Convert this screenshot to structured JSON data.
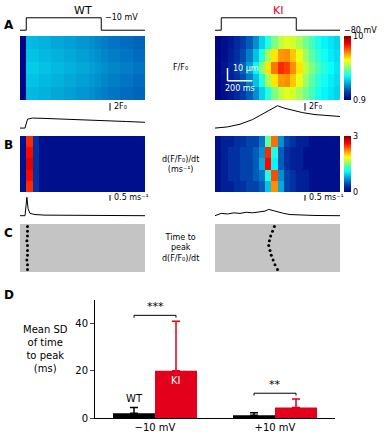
{
  "columns": [
    {
      "title": "WT",
      "color": "#000000"
    },
    {
      "title": "KI",
      "color": "#e3001b"
    }
  ],
  "chart_data": [
    {
      "type": "step",
      "panel": "A",
      "column": "WT",
      "x": [
        0,
        50,
        650,
        1000
      ],
      "values": [
        -80,
        -10,
        -80,
        -80
      ],
      "xlim": [
        0,
        1000
      ],
      "ylim": [
        -90,
        0
      ],
      "tick_labels": false,
      "color": "#000000",
      "level_labels": [
        {
          "value": -10,
          "label": "−10 mV"
        }
      ]
    },
    {
      "type": "step",
      "panel": "A",
      "column": "KI",
      "x": [
        0,
        50,
        650,
        1000
      ],
      "values": [
        -80,
        -10,
        -80,
        -80
      ],
      "xlim": [
        0,
        1000
      ],
      "ylim": [
        -90,
        0
      ],
      "tick_labels": false,
      "color": "#000000",
      "level_labels": [
        {
          "value": -80,
          "label": "−80 mV"
        }
      ]
    },
    {
      "type": "heatmap",
      "panel": "A",
      "column": "WT",
      "x": [
        25,
        75,
        125,
        175,
        225,
        275,
        325,
        375,
        425,
        475,
        525,
        575,
        625,
        675,
        725,
        775,
        825,
        875,
        925,
        975
      ],
      "y": [
        5,
        15,
        25,
        35,
        45
      ],
      "z": [
        [
          1.0,
          3.5,
          3.5,
          3.4,
          3.4,
          3.3,
          3.3,
          3.2,
          3.2,
          3.1,
          3.1,
          3.0,
          2.9,
          2.8,
          2.7,
          2.7,
          2.6,
          2.6,
          2.5,
          2.5
        ],
        [
          1.0,
          3.6,
          3.6,
          3.5,
          3.5,
          3.4,
          3.4,
          3.3,
          3.3,
          3.2,
          3.2,
          3.1,
          3.0,
          2.9,
          2.8,
          2.8,
          2.7,
          2.7,
          2.6,
          2.6
        ],
        [
          1.0,
          3.7,
          3.7,
          3.6,
          3.6,
          3.5,
          3.5,
          3.4,
          3.4,
          3.3,
          3.3,
          3.2,
          3.1,
          3.0,
          2.9,
          2.9,
          2.8,
          2.8,
          2.7,
          2.7
        ],
        [
          1.0,
          3.6,
          3.6,
          3.5,
          3.5,
          3.4,
          3.4,
          3.3,
          3.3,
          3.2,
          3.2,
          3.1,
          3.0,
          2.9,
          2.8,
          2.8,
          2.7,
          2.7,
          2.6,
          2.6
        ],
        [
          1.0,
          3.5,
          3.5,
          3.4,
          3.4,
          3.3,
          3.3,
          3.2,
          3.2,
          3.1,
          3.1,
          3.0,
          2.9,
          2.8,
          2.7,
          2.7,
          2.6,
          2.6,
          2.5,
          2.5
        ]
      ],
      "zlim": [
        0.9,
        10
      ],
      "xlim": [
        0,
        1000
      ],
      "ylim": [
        0,
        50
      ],
      "tick_labels": false
    },
    {
      "type": "heatmap",
      "panel": "A",
      "column": "KI",
      "x": [
        25,
        75,
        125,
        175,
        225,
        275,
        325,
        375,
        425,
        475,
        525,
        575,
        625,
        675,
        725,
        775,
        825,
        875,
        925,
        975
      ],
      "y": [
        5,
        15,
        25,
        35,
        45
      ],
      "z": [
        [
          1.0,
          1.2,
          1.4,
          1.7,
          2.0,
          2.4,
          3.0,
          3.8,
          4.6,
          5.4,
          6.0,
          6.3,
          6.2,
          5.8,
          5.3,
          4.9,
          4.5,
          4.2,
          4.0,
          3.8
        ],
        [
          1.0,
          1.2,
          1.5,
          1.8,
          2.2,
          2.8,
          3.6,
          4.6,
          5.8,
          6.8,
          7.5,
          7.6,
          7.1,
          6.4,
          5.7,
          5.1,
          4.7,
          4.4,
          4.1,
          3.9
        ],
        [
          1.0,
          1.3,
          1.6,
          2.0,
          2.5,
          3.2,
          4.2,
          5.5,
          6.8,
          7.8,
          8.5,
          8.3,
          7.6,
          6.8,
          6.0,
          5.4,
          5.0,
          4.6,
          4.3,
          4.0
        ],
        [
          1.0,
          1.2,
          1.5,
          1.8,
          2.2,
          2.8,
          3.6,
          4.6,
          5.8,
          6.8,
          7.5,
          7.6,
          7.1,
          6.4,
          5.7,
          5.1,
          4.7,
          4.4,
          4.1,
          3.9
        ],
        [
          1.0,
          1.2,
          1.4,
          1.7,
          2.0,
          2.4,
          3.0,
          3.8,
          4.6,
          5.4,
          6.0,
          6.3,
          6.2,
          5.8,
          5.3,
          4.9,
          4.5,
          4.2,
          4.0,
          3.8
        ]
      ],
      "zlim": [
        0.9,
        10
      ],
      "xlim": [
        0,
        1000
      ],
      "ylim": [
        0,
        50
      ],
      "tick_labels": false,
      "colorbar": {
        "ticks": [
          0.9,
          10
        ],
        "title": "F/F₀"
      },
      "scale_bars": [
        {
          "axis": "y",
          "length": 10,
          "label": "10 µm"
        },
        {
          "axis": "x",
          "length": 200,
          "label": "200 ms"
        }
      ]
    },
    {
      "type": "line",
      "panel": "A",
      "column": "WT",
      "x": [
        0,
        40,
        60,
        100,
        200,
        300,
        400,
        500,
        600,
        650,
        700,
        850,
        1000
      ],
      "values": [
        1.0,
        1.0,
        3.3,
        3.6,
        3.5,
        3.4,
        3.3,
        3.2,
        3.1,
        3.0,
        2.9,
        2.7,
        2.5
      ],
      "xlim": [
        0,
        1000
      ],
      "ylim": [
        0.5,
        7.5
      ],
      "tick_labels": false,
      "color": "#000000",
      "scale_bar": {
        "length": 2,
        "label": "2F₀"
      }
    },
    {
      "type": "line",
      "panel": "A",
      "column": "KI",
      "x": [
        0,
        100,
        200,
        300,
        400,
        450,
        500,
        550,
        600,
        700,
        800,
        900,
        1000
      ],
      "values": [
        1.0,
        1.3,
        2.0,
        3.2,
        5.0,
        6.0,
        6.8,
        6.2,
        5.8,
        5.0,
        4.5,
        4.2,
        4.0
      ],
      "xlim": [
        0,
        1000
      ],
      "ylim": [
        0.5,
        7.5
      ],
      "tick_labels": false,
      "color": "#000000",
      "scale_bar": {
        "length": 2,
        "label": "2F₀"
      }
    },
    {
      "type": "heatmap",
      "panel": "B",
      "column": "WT",
      "x": [
        25,
        75,
        125,
        175,
        225,
        275,
        325,
        375,
        425,
        475,
        525,
        575,
        625,
        675,
        725,
        775,
        825,
        875,
        925,
        975
      ],
      "y": [
        5,
        15,
        25,
        35,
        45
      ],
      "z": [
        [
          0.1,
          2.5,
          0.3,
          0.1,
          0.1,
          0.1,
          0.1,
          0.1,
          0.1,
          0.1,
          0.1,
          0.1,
          0.1,
          0.1,
          0.1,
          0.1,
          0.1,
          0.1,
          0.1,
          0.1
        ],
        [
          0.1,
          2.6,
          0.3,
          0.1,
          0.1,
          0.1,
          0.1,
          0.1,
          0.1,
          0.1,
          0.1,
          0.1,
          0.1,
          0.1,
          0.1,
          0.1,
          0.1,
          0.1,
          0.1,
          0.1
        ],
        [
          0.1,
          2.7,
          0.3,
          0.1,
          0.1,
          0.1,
          0.1,
          0.1,
          0.1,
          0.1,
          0.1,
          0.1,
          0.1,
          0.1,
          0.1,
          0.1,
          0.1,
          0.1,
          0.1,
          0.1
        ],
        [
          0.1,
          2.6,
          0.3,
          0.1,
          0.1,
          0.1,
          0.1,
          0.1,
          0.1,
          0.1,
          0.1,
          0.1,
          0.1,
          0.1,
          0.1,
          0.1,
          0.1,
          0.1,
          0.1,
          0.1
        ],
        [
          0.1,
          2.5,
          0.3,
          0.1,
          0.1,
          0.1,
          0.1,
          0.1,
          0.1,
          0.1,
          0.1,
          0.1,
          0.1,
          0.1,
          0.1,
          0.1,
          0.1,
          0.1,
          0.1,
          0.1
        ]
      ],
      "zlim": [
        0,
        3
      ],
      "xlim": [
        0,
        1000
      ],
      "ylim": [
        0,
        50
      ],
      "tick_labels": false
    },
    {
      "type": "heatmap",
      "panel": "B",
      "column": "KI",
      "x": [
        25,
        75,
        125,
        175,
        225,
        275,
        325,
        375,
        425,
        475,
        525,
        575,
        625,
        675,
        725,
        775,
        825,
        875,
        925,
        975
      ],
      "y": [
        5,
        15,
        25,
        35,
        45
      ],
      "z": [
        [
          0.1,
          0.2,
          0.2,
          0.3,
          0.3,
          0.4,
          0.4,
          0.5,
          0.9,
          2.2,
          0.8,
          0.4,
          0.3,
          0.2,
          0.2,
          0.1,
          0.1,
          0.1,
          0.1,
          0.1
        ],
        [
          0.1,
          0.2,
          0.3,
          0.3,
          0.4,
          0.4,
          0.5,
          0.6,
          1.2,
          2.4,
          0.7,
          0.4,
          0.3,
          0.2,
          0.2,
          0.1,
          0.1,
          0.1,
          0.1,
          0.1
        ],
        [
          0.1,
          0.2,
          0.3,
          0.3,
          0.4,
          0.4,
          0.5,
          0.8,
          2.6,
          1.1,
          0.5,
          0.3,
          0.2,
          0.2,
          0.1,
          0.1,
          0.1,
          0.1,
          0.1,
          0.1
        ],
        [
          0.1,
          0.2,
          0.3,
          0.3,
          0.4,
          0.4,
          0.5,
          0.7,
          2.5,
          1.2,
          0.5,
          0.3,
          0.2,
          0.2,
          0.1,
          0.1,
          0.1,
          0.1,
          0.1,
          0.1
        ],
        [
          0.1,
          0.2,
          0.2,
          0.3,
          0.3,
          0.4,
          0.4,
          0.6,
          1.4,
          2.3,
          0.7,
          0.4,
          0.3,
          0.2,
          0.2,
          0.1,
          0.1,
          0.1,
          0.1,
          0.1
        ]
      ],
      "zlim": [
        0,
        3
      ],
      "xlim": [
        0,
        1000
      ],
      "ylim": [
        0,
        50
      ],
      "tick_labels": false,
      "colorbar": {
        "ticks": [
          0,
          3
        ],
        "title": "d(F/F₀)/dt (ms⁻¹)"
      }
    },
    {
      "type": "line",
      "panel": "B",
      "column": "WT",
      "x": [
        0,
        40,
        55,
        65,
        80,
        120,
        200,
        400,
        600,
        800,
        1000
      ],
      "values": [
        0,
        0,
        1.6,
        0.6,
        0.2,
        0.1,
        0.05,
        0.05,
        0,
        0,
        0
      ],
      "xlim": [
        0,
        1000
      ],
      "ylim": [
        -0.2,
        1.8
      ],
      "tick_labels": false,
      "color": "#000000",
      "scale_bar": {
        "length": 0.5,
        "label": "0.5 ms⁻¹"
      }
    },
    {
      "type": "line",
      "panel": "B",
      "column": "KI",
      "x": [
        0,
        50,
        100,
        150,
        200,
        250,
        300,
        350,
        400,
        430,
        460,
        500,
        550,
        600,
        700,
        800,
        1000
      ],
      "values": [
        0,
        0.2,
        0.15,
        0.25,
        0.2,
        0.3,
        0.25,
        0.35,
        0.4,
        0.55,
        0.45,
        0.3,
        0.2,
        0.1,
        0.05,
        0.02,
        0
      ],
      "xlim": [
        0,
        1000
      ],
      "ylim": [
        -0.2,
        1.8
      ],
      "tick_labels": false,
      "color": "#000000",
      "scale_bar": {
        "length": 0.5,
        "label": "0.5 ms⁻¹"
      }
    },
    {
      "type": "scatter",
      "panel": "C",
      "column": "WT",
      "x": [
        60,
        60,
        55,
        60,
        60,
        60,
        55,
        60,
        60,
        60
      ],
      "values": [
        2.5,
        7.5,
        12.5,
        17.5,
        22.5,
        27.5,
        32.5,
        37.5,
        42.5,
        47.5
      ],
      "xlim": [
        0,
        1000
      ],
      "ylim": [
        0,
        50
      ],
      "tick_labels": false,
      "color": "#000000"
    },
    {
      "type": "scatter",
      "panel": "C",
      "column": "KI",
      "x": [
        500,
        480,
        465,
        450,
        440,
        430,
        435,
        445,
        460,
        475
      ],
      "values": [
        2.5,
        7.5,
        12.5,
        17.5,
        22.5,
        27.5,
        32.5,
        37.5,
        42.5,
        47.5
      ],
      "xlim": [
        0,
        1000
      ],
      "ylim": [
        0,
        50
      ],
      "tick_labels": false,
      "color": "#000000",
      "title": "Time to peak d(F/F₀)/dt"
    },
    {
      "type": "bar",
      "panel": "D",
      "categories": [
        "−10 mV",
        "+10 mV"
      ],
      "series": [
        {
          "name": "WT",
          "color": "#000000",
          "values": [
            2,
            1.2
          ],
          "errors": [
            2.5,
            1
          ]
        },
        {
          "name": "KI",
          "color": "#e3001b",
          "values": [
            20,
            4.5
          ],
          "errors": [
            21,
            3.5
          ]
        }
      ],
      "ylim": [
        0,
        50
      ],
      "yticks": [
        0,
        20,
        40
      ],
      "ylabel": "Mean SD of time to peak (ms)",
      "significance": [
        {
          "category": "−10 mV",
          "label": "***"
        },
        {
          "category": "+10 mV",
          "label": "**"
        }
      ]
    }
  ]
}
